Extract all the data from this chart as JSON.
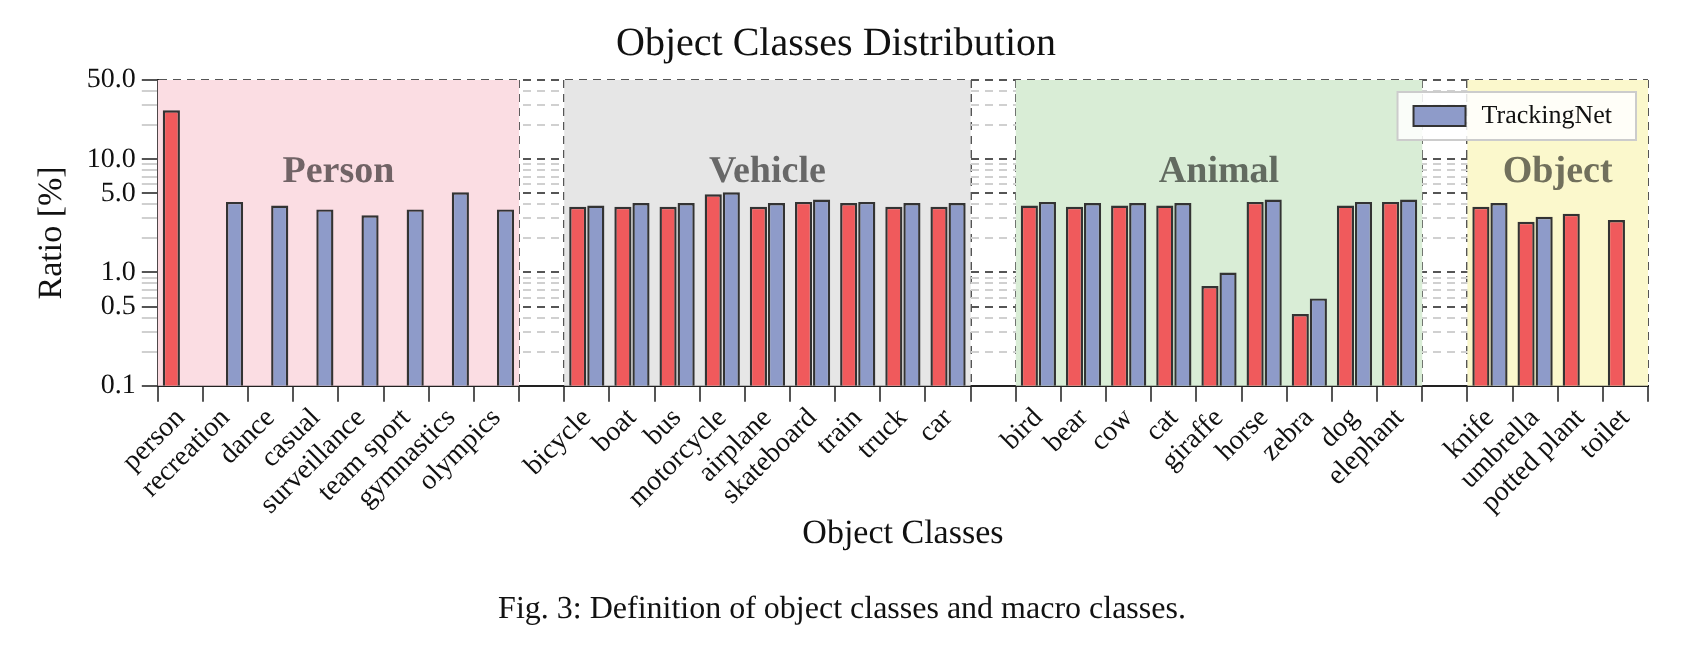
{
  "chart_data": {
    "type": "bar",
    "title": "Object Classes Distribution",
    "xlabel": "Object Classes",
    "ylabel": "Ratio [%]",
    "categories": [
      "person",
      "recreation",
      "dance",
      "casual",
      "surveillance",
      "team sport",
      "gymnastics",
      "olympics",
      null,
      "bicycle",
      "boat",
      "bus",
      "motorcycle",
      "airplane",
      "skateboard",
      "train",
      "truck",
      "car",
      null,
      "bird",
      "bear",
      "cow",
      "cat",
      "giraffe",
      "horse",
      "zebra",
      "dog",
      "elephant",
      null,
      "knife",
      "umbrella",
      "potted plant",
      "toilet"
    ],
    "series": [
      {
        "color": "#f05a5c",
        "values": [
          27,
          null,
          null,
          null,
          null,
          null,
          null,
          null,
          null,
          3.8,
          3.8,
          3.8,
          4.9,
          3.8,
          4.2,
          4.1,
          3.8,
          3.8,
          null,
          3.9,
          3.8,
          3.9,
          3.9,
          0.76,
          4.2,
          0.43,
          3.9,
          4.2,
          null,
          3.8,
          2.8,
          3.3,
          2.9
        ]
      },
      {
        "name": "TrackingNet",
        "color": "#8e9bc9",
        "values": [
          null,
          4.2,
          3.9,
          3.6,
          3.2,
          3.6,
          5.1,
          3.6,
          null,
          3.9,
          4.1,
          4.1,
          5.1,
          4.1,
          4.4,
          4.2,
          4.1,
          4.1,
          null,
          4.2,
          4.1,
          4.1,
          4.1,
          1.0,
          4.4,
          0.59,
          4.2,
          4.4,
          null,
          4.1,
          3.1,
          null,
          null
        ]
      }
    ],
    "log": "y",
    "ylim": [
      0.1,
      50
    ],
    "yticks": [
      {
        "value": 0.1,
        "label": "0.1"
      },
      {
        "value": 0.2,
        "label": null
      },
      {
        "value": 0.3,
        "label": null
      },
      {
        "value": 0.4,
        "label": null
      },
      {
        "value": 0.5,
        "label": "0.5"
      },
      {
        "value": 0.6,
        "label": null
      },
      {
        "value": 0.7,
        "label": null
      },
      {
        "value": 0.8,
        "label": null
      },
      {
        "value": 0.9,
        "label": null
      },
      {
        "value": 1,
        "label": "1.0"
      },
      {
        "value": 2,
        "label": null
      },
      {
        "value": 3,
        "label": null
      },
      {
        "value": 4,
        "label": null
      },
      {
        "value": 5,
        "label": "5.0"
      },
      {
        "value": 6,
        "label": null
      },
      {
        "value": 7,
        "label": null
      },
      {
        "value": 8,
        "label": null
      },
      {
        "value": 9,
        "label": null
      },
      {
        "value": 10,
        "label": "10.0"
      },
      {
        "value": 20,
        "label": null
      },
      {
        "value": 30,
        "label": null
      },
      {
        "value": 40,
        "label": null
      },
      {
        "value": 50,
        "label": "50.0"
      }
    ],
    "bands": [
      {
        "axis": "x",
        "from": "person",
        "to": "olympics",
        "label": "Person",
        "color": "#fbdde3"
      },
      {
        "axis": "x",
        "from": "bicycle",
        "to": "car",
        "label": "Vehicle",
        "color": "#e6e6e6"
      },
      {
        "axis": "x",
        "from": "bird",
        "to": "elephant",
        "label": "Animal",
        "color": "#d9edd6"
      },
      {
        "axis": "x",
        "from": "knife",
        "to": "toilet",
        "label": "Object",
        "color": "#fbf8cc"
      }
    ],
    "grid": true,
    "legend": "top right",
    "annotations": [
      "Fig. 3: Definition of object classes and macro classes."
    ]
  }
}
